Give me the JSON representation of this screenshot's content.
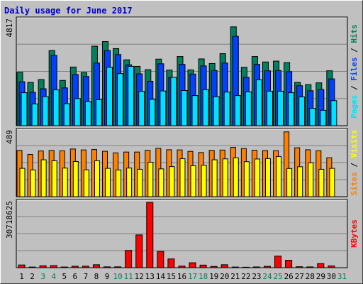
{
  "title": "Daily usage for June 2017",
  "colors": {
    "background": "#c0c0c0",
    "title": "#0000cc",
    "hits": "#00805c",
    "files": "#0040ff",
    "pages": "#00e0ff",
    "visits": "#ffff00",
    "sites": "#ff8000",
    "kbytes": "#ff0000",
    "weekend_day": "#00805c",
    "weekday": "#000000"
  },
  "labels": {
    "hits_files_pages": [
      "Pages",
      "Files",
      "Hits"
    ],
    "visits_sites": [
      "Sites",
      "Visits"
    ],
    "kbytes": "KBytes"
  },
  "chart_data": {
    "type": "bar",
    "title": "Daily usage for June 2017",
    "x": [
      "1",
      "2",
      "3",
      "4",
      "5",
      "6",
      "7",
      "8",
      "9",
      "10",
      "11",
      "12",
      "13",
      "14",
      "15",
      "16",
      "17",
      "18",
      "19",
      "20",
      "21",
      "22",
      "23",
      "24",
      "25",
      "26",
      "27",
      "28",
      "29",
      "30",
      "31"
    ],
    "weekend_days": [
      "3",
      "4",
      "10",
      "11",
      "17",
      "18",
      "24",
      "25",
      "31"
    ],
    "panels": [
      {
        "name": "hits_files_pages",
        "max_label": "4817",
        "ylim": [
          0,
          4817
        ],
        "series": [
          {
            "name": "Hits",
            "values": [
              2430,
              1970,
              2100,
              3420,
              2060,
              2670,
              2420,
              3620,
              3830,
              3510,
              3000,
              2700,
              2550,
              3030,
              2530,
              3150,
              2540,
              3040,
              2830,
              3280,
              4500,
              2660,
              3150,
              2900,
              2940,
              2870,
              1970,
              1870,
              1950,
              2500,
              0
            ]
          },
          {
            "name": "Files",
            "values": [
              2000,
              1520,
              1680,
              3200,
              1720,
              2330,
              2240,
              2850,
              3420,
              3240,
              2770,
              2360,
              2020,
              2820,
              2190,
              2790,
              2350,
              2720,
              2510,
              2850,
              4070,
              2200,
              2790,
              2500,
              2510,
              2460,
              1820,
              1590,
              1650,
              2130,
              0
            ]
          },
          {
            "name": "Pages",
            "values": [
              1500,
              990,
              1320,
              1630,
              1000,
              1230,
              1100,
              1180,
              2660,
              2370,
              2700,
              1560,
              1200,
              1580,
              2200,
              1600,
              1370,
              1640,
              1320,
              1530,
              1370,
              1540,
              2090,
              1570,
              1570,
              1500,
              1310,
              790,
              700,
              1140,
              0
            ]
          }
        ]
      },
      {
        "name": "visits_sites",
        "max_label": "489",
        "ylim": [
          0,
          489
        ],
        "series": [
          {
            "name": "Sites",
            "values": [
              346,
              316,
              342,
              346,
              343,
              357,
              350,
              353,
              340,
              328,
              334,
              334,
              347,
              362,
              351,
              350,
              339,
              330,
              347,
              349,
              369,
              360,
              348,
              345,
              344,
              485,
              366,
              351,
              344,
              291,
              0
            ]
          },
          {
            "name": "Visits",
            "values": [
              212,
              200,
              276,
              269,
              214,
              263,
              201,
              269,
              212,
              200,
              214,
              205,
              258,
              208,
              225,
              284,
              232,
              235,
              276,
              283,
              291,
              262,
              282,
              285,
              300,
              211,
              224,
              254,
              205,
              212,
              0
            ]
          }
        ]
      },
      {
        "name": "kbytes",
        "max_label": "30718625",
        "ylim": [
          0,
          30718625
        ],
        "series": [
          {
            "name": "KBytes",
            "values": [
              1280000,
              290000,
              900000,
              980000,
              310000,
              660000,
              700000,
              1380000,
              380000,
              390000,
              8100000,
              15400000,
              30718625,
              7600000,
              4120000,
              740000,
              2300000,
              1220000,
              570000,
              1380000,
              300000,
              220000,
              340000,
              620000,
              5430000,
              3500000,
              450000,
              360000,
              1900000,
              820000,
              0
            ]
          }
        ]
      }
    ]
  }
}
